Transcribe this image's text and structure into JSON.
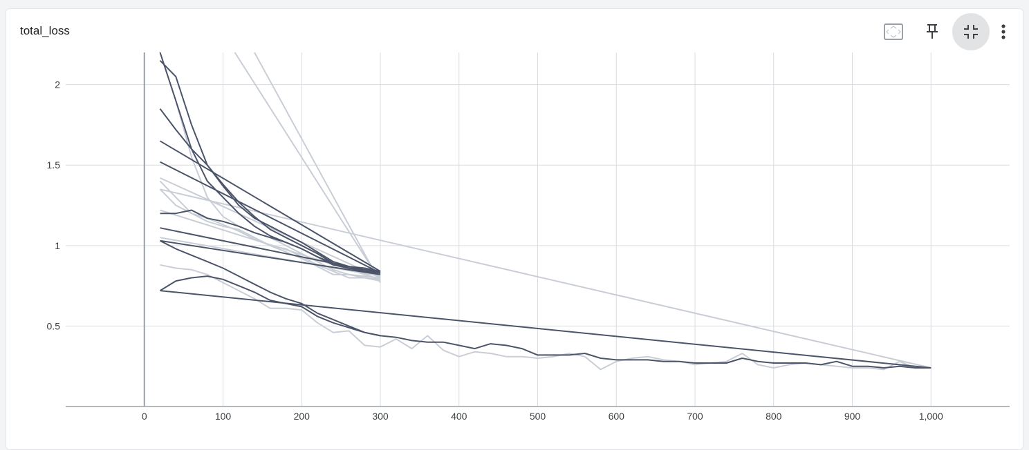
{
  "card": {
    "title": "total_loss"
  },
  "toolbar": {
    "icons": [
      "fit-domain-icon",
      "pin-icon",
      "collapse-icon",
      "more-vert-icon"
    ]
  },
  "chart_data": {
    "type": "line",
    "xlim": [
      -100,
      1100
    ],
    "ylim": [
      0,
      2.2
    ],
    "xticks": [
      0,
      100,
      200,
      300,
      400,
      500,
      600,
      700,
      800,
      900,
      1000
    ],
    "xtick_labels": [
      "0",
      "100",
      "200",
      "300",
      "400",
      "500",
      "600",
      "700",
      "800",
      "900",
      "1,000"
    ],
    "yticks": [
      0.5,
      1,
      1.5,
      2
    ],
    "ytick_labels": [
      "0.5",
      "1",
      "1.5",
      "2"
    ],
    "grid": true,
    "colors": {
      "dark": "#4b5468",
      "light": "#c9ced6",
      "grid": "#dadce0",
      "axis": "#9aa0a6"
    },
    "series": [
      {
        "style": "light",
        "x": [
          20,
          40,
          60,
          80,
          100,
          120,
          140,
          160,
          180,
          200,
          220,
          240,
          260,
          280,
          300
        ],
        "y": [
          2.2,
          1.9,
          1.55,
          1.3,
          1.18,
          1.12,
          1.08,
          1.05,
          1.0,
          0.95,
          0.9,
          0.85,
          0.82,
          0.8,
          0.79
        ]
      },
      {
        "style": "light",
        "x": [
          20,
          40,
          60,
          80,
          100,
          120,
          140,
          160,
          180,
          200,
          220,
          240,
          260,
          280,
          300
        ],
        "y": [
          1.4,
          1.3,
          1.2,
          1.15,
          1.12,
          1.1,
          1.05,
          1.0,
          0.98,
          0.93,
          0.88,
          0.84,
          0.8,
          0.8,
          0.78
        ]
      },
      {
        "style": "light",
        "x": [
          20,
          40,
          60,
          80,
          100,
          120,
          140,
          160,
          180,
          200,
          220,
          240,
          260,
          280,
          300
        ],
        "y": [
          1.35,
          1.25,
          1.2,
          1.17,
          1.13,
          1.09,
          1.04,
          1.0,
          0.96,
          0.92,
          0.87,
          0.82,
          0.82,
          0.81,
          0.8
        ]
      },
      {
        "style": "light",
        "x": [
          20,
          300
        ],
        "y": [
          1.42,
          0.8
        ]
      },
      {
        "style": "light",
        "x": [
          20,
          300
        ],
        "y": [
          1.22,
          0.79
        ]
      },
      {
        "style": "light",
        "x": [
          20,
          300
        ],
        "y": [
          1.05,
          0.81
        ]
      },
      {
        "style": "light",
        "x": [
          115,
          300
        ],
        "y": [
          2.2,
          0.78
        ]
      },
      {
        "style": "light",
        "x": [
          140,
          300
        ],
        "y": [
          2.2,
          0.77
        ]
      },
      {
        "style": "light",
        "x": [
          20,
          1000
        ],
        "y": [
          1.35,
          0.24
        ]
      },
      {
        "style": "light",
        "x": [
          20,
          40,
          60,
          80,
          100,
          120,
          140,
          160,
          180,
          200,
          220,
          240,
          260,
          280,
          300,
          320,
          340,
          360,
          380,
          400,
          420,
          440,
          460,
          480,
          500,
          520,
          540,
          560,
          580,
          600,
          620,
          640,
          660,
          680,
          700,
          720,
          740,
          760,
          780,
          800,
          820,
          840,
          860,
          880,
          900,
          920,
          940,
          960,
          980,
          1000
        ],
        "y": [
          0.88,
          0.86,
          0.85,
          0.82,
          0.77,
          0.72,
          0.67,
          0.61,
          0.61,
          0.6,
          0.52,
          0.46,
          0.47,
          0.38,
          0.37,
          0.42,
          0.36,
          0.44,
          0.35,
          0.31,
          0.34,
          0.33,
          0.31,
          0.31,
          0.3,
          0.31,
          0.33,
          0.31,
          0.23,
          0.28,
          0.3,
          0.31,
          0.29,
          0.28,
          0.26,
          0.27,
          0.28,
          0.33,
          0.26,
          0.24,
          0.26,
          0.27,
          0.26,
          0.25,
          0.24,
          0.24,
          0.23,
          0.28,
          0.24,
          0.24
        ]
      },
      {
        "style": "dark",
        "x": [
          20,
          40,
          60,
          80,
          100,
          120,
          140,
          160,
          180,
          200,
          220,
          240,
          260,
          280,
          300
        ],
        "y": [
          2.2,
          1.9,
          1.6,
          1.4,
          1.3,
          1.2,
          1.12,
          1.06,
          1.02,
          0.98,
          0.93,
          0.88,
          0.86,
          0.84,
          0.83
        ]
      },
      {
        "style": "dark",
        "x": [
          20,
          40,
          60,
          80,
          100,
          120,
          140,
          160,
          180,
          200,
          220,
          240,
          260,
          280,
          300
        ],
        "y": [
          1.85,
          1.72,
          1.6,
          1.5,
          1.37,
          1.25,
          1.17,
          1.12,
          1.07,
          1.02,
          0.96,
          0.9,
          0.87,
          0.86,
          0.84
        ]
      },
      {
        "style": "dark",
        "x": [
          20,
          40,
          60,
          80,
          100,
          120,
          140,
          160,
          180,
          200,
          220,
          240,
          260,
          280,
          300
        ],
        "y": [
          1.2,
          1.2,
          1.22,
          1.17,
          1.15,
          1.12,
          1.08,
          1.05,
          1.02,
          0.98,
          0.93,
          0.89,
          0.86,
          0.85,
          0.84
        ]
      },
      {
        "style": "dark",
        "x": [
          20,
          40,
          60,
          80,
          100,
          120,
          140,
          160,
          180,
          200,
          220,
          240,
          260,
          280,
          300
        ],
        "y": [
          1.03,
          0.98,
          0.94,
          0.9,
          0.86,
          0.81,
          0.76,
          0.71,
          0.67,
          0.64,
          0.58,
          0.54,
          0.5,
          0.46,
          0.44
        ]
      },
      {
        "style": "dark",
        "x": [
          20,
          40,
          60,
          80,
          100,
          120,
          140,
          160,
          180,
          200,
          220,
          240,
          260,
          280,
          300,
          320,
          340,
          360,
          380,
          400,
          420,
          440,
          460,
          480,
          500,
          520,
          540,
          560,
          580,
          600,
          620,
          640,
          660,
          680,
          700,
          720,
          740,
          760,
          780,
          800,
          820,
          840,
          860,
          880,
          900,
          920,
          940,
          960,
          980,
          1000
        ],
        "y": [
          0.72,
          0.78,
          0.8,
          0.81,
          0.79,
          0.75,
          0.71,
          0.66,
          0.64,
          0.62,
          0.56,
          0.52,
          0.49,
          0.46,
          0.44,
          0.43,
          0.41,
          0.4,
          0.4,
          0.38,
          0.36,
          0.39,
          0.38,
          0.36,
          0.32,
          0.32,
          0.32,
          0.33,
          0.3,
          0.29,
          0.29,
          0.29,
          0.28,
          0.28,
          0.27,
          0.27,
          0.27,
          0.3,
          0.28,
          0.27,
          0.27,
          0.27,
          0.26,
          0.28,
          0.25,
          0.25,
          0.24,
          0.25,
          0.24,
          0.24
        ]
      },
      {
        "style": "dark",
        "x": [
          20,
          40,
          60,
          80,
          100,
          120,
          140,
          160,
          180,
          200,
          220,
          240,
          260,
          280,
          300
        ],
        "y": [
          2.15,
          2.05,
          1.75,
          1.5,
          1.38,
          1.27,
          1.18,
          1.1,
          1.05,
          1.0,
          0.95,
          0.89,
          0.86,
          0.84,
          0.82
        ]
      },
      {
        "style": "dark",
        "x": [
          20,
          300
        ],
        "y": [
          1.65,
          0.84
        ]
      },
      {
        "style": "dark",
        "x": [
          20,
          300
        ],
        "y": [
          1.52,
          0.83
        ]
      },
      {
        "style": "dark",
        "x": [
          20,
          300
        ],
        "y": [
          1.11,
          0.83
        ]
      },
      {
        "style": "dark",
        "x": [
          20,
          300
        ],
        "y": [
          1.03,
          0.82
        ]
      },
      {
        "style": "dark",
        "x": [
          20,
          1000
        ],
        "y": [
          0.72,
          0.24
        ]
      }
    ]
  }
}
